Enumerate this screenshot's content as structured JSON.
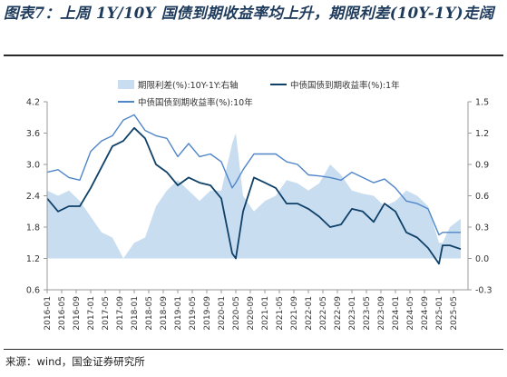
{
  "header": {
    "title": "图表7：上周 1Y/10Y 国债到期收益率均上升，期限利差(10Y-1Y)走阔"
  },
  "footer": {
    "source": "来源：wind，国金证券研究所"
  },
  "colors": {
    "spread_fill": "#c9ddf1",
    "yield_1y": "#0f4168",
    "yield_10y": "#4f86c8",
    "axis": "#999999"
  },
  "chart_data": {
    "type": "line",
    "title": "",
    "xlabel": "",
    "ylabel": "",
    "ylim": [
      0.6,
      4.2
    ],
    "y_ticks": [
      "4.2",
      "3.6",
      "3.0",
      "2.4",
      "1.8",
      "1.2",
      "0.6"
    ],
    "y2lim": [
      -0.3,
      1.5
    ],
    "y2_ticks": [
      "1.5",
      "1.2",
      "0.9",
      "0.6",
      "0.3",
      "0.0",
      "-0.3"
    ],
    "x_ticks": [
      "2016-01",
      "2016-05",
      "2016-09",
      "2017-01",
      "2017-05",
      "2017-09",
      "2018-01",
      "2018-05",
      "2018-09",
      "2019-01",
      "2019-05",
      "2019-09",
      "2020-01",
      "2020-05",
      "2020-09",
      "2021-01",
      "2021-05",
      "2021-09",
      "2022-01",
      "2022-05",
      "2022-09",
      "2023-01",
      "2023-05",
      "2023-09",
      "2024-01",
      "2024-05",
      "2024-09",
      "2025-01",
      "2025-05"
    ],
    "legend": [
      "期限利差(%):10Y-1Y:右轴",
      "中债国债到期收益率(%):1年",
      "中债国债到期收益率(%):10年"
    ],
    "legend_position": "top",
    "grid": false,
    "x": [
      "2016-01",
      "2016-04",
      "2016-07",
      "2016-10",
      "2017-01",
      "2017-04",
      "2017-07",
      "2017-10",
      "2018-01",
      "2018-04",
      "2018-07",
      "2018-10",
      "2019-01",
      "2019-04",
      "2019-07",
      "2019-10",
      "2020-01",
      "2020-04",
      "2020-05",
      "2020-07",
      "2020-10",
      "2021-01",
      "2021-04",
      "2021-07",
      "2021-10",
      "2022-01",
      "2022-04",
      "2022-07",
      "2022-10",
      "2023-01",
      "2023-04",
      "2023-07",
      "2023-10",
      "2024-01",
      "2024-04",
      "2024-07",
      "2024-10",
      "2025-01",
      "2025-02",
      "2025-04",
      "2025-07"
    ],
    "series": [
      {
        "name": "期限利差(%):10Y-1Y:右轴",
        "axis": "right",
        "kind": "area",
        "values": [
          0.65,
          0.6,
          0.65,
          0.55,
          0.4,
          0.25,
          0.2,
          0.0,
          0.15,
          0.2,
          0.5,
          0.65,
          0.75,
          0.65,
          0.55,
          0.65,
          0.65,
          1.1,
          1.2,
          0.6,
          0.45,
          0.55,
          0.6,
          0.75,
          0.72,
          0.65,
          0.72,
          0.9,
          0.8,
          0.65,
          0.62,
          0.6,
          0.5,
          0.55,
          0.65,
          0.6,
          0.5,
          0.15,
          0.15,
          0.3,
          0.38
        ]
      },
      {
        "name": "中债国债到期收益率(%):1年",
        "axis": "left",
        "kind": "line",
        "values": [
          2.35,
          2.1,
          2.2,
          2.2,
          2.55,
          2.95,
          3.35,
          3.45,
          3.7,
          3.5,
          3.0,
          2.85,
          2.6,
          2.75,
          2.65,
          2.6,
          2.35,
          1.3,
          1.2,
          2.1,
          2.75,
          2.65,
          2.55,
          2.25,
          2.25,
          2.15,
          2.0,
          1.8,
          1.85,
          2.15,
          2.1,
          1.9,
          2.25,
          2.1,
          1.7,
          1.6,
          1.4,
          1.1,
          1.45,
          1.45,
          1.38
        ]
      },
      {
        "name": "中债国债到期收益率(%):10年",
        "axis": "left",
        "kind": "line",
        "values": [
          2.85,
          2.9,
          2.75,
          2.7,
          3.25,
          3.45,
          3.55,
          3.85,
          3.95,
          3.65,
          3.55,
          3.5,
          3.15,
          3.4,
          3.15,
          3.2,
          3.05,
          2.55,
          2.65,
          2.9,
          3.2,
          3.2,
          3.2,
          3.05,
          3.0,
          2.8,
          2.78,
          2.75,
          2.7,
          2.85,
          2.75,
          2.65,
          2.72,
          2.55,
          2.3,
          2.25,
          2.15,
          1.65,
          1.7,
          1.7,
          1.7
        ]
      }
    ]
  }
}
